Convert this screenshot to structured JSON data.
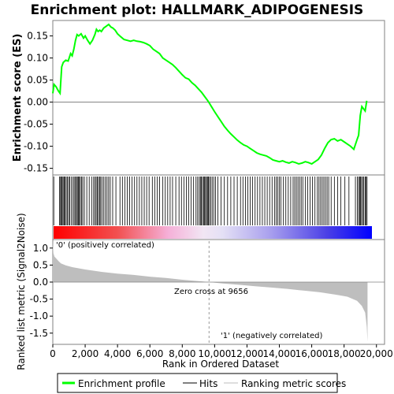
{
  "chart_data": [
    {
      "type": "line",
      "title": "Enrichment plot: HALLMARK_ADIPOGENESIS",
      "ylabel": "Enrichment score (ES)",
      "ylim": [
        -0.165,
        0.185
      ],
      "yticks": [
        "-0.15",
        "-0.10",
        "-0.05",
        "0.00",
        "0.05",
        "0.10",
        "0.15"
      ],
      "ytick_values": [
        -0.15,
        -0.1,
        -0.05,
        0.0,
        0.05,
        0.1,
        0.15
      ],
      "xlim": [
        0,
        20500
      ],
      "series": [
        {
          "name": "Enrichment profile",
          "color": "#00ff00",
          "x": [
            0,
            80,
            200,
            350,
            450,
            550,
            650,
            800,
            950,
            1100,
            1200,
            1300,
            1400,
            1500,
            1600,
            1750,
            1900,
            2000,
            2150,
            2300,
            2450,
            2600,
            2700,
            2800,
            2900,
            3000,
            3150,
            3300,
            3450,
            3600,
            3700,
            3850,
            4000,
            4200,
            4400,
            4600,
            4800,
            5000,
            5200,
            5400,
            5600,
            5800,
            6000,
            6200,
            6400,
            6600,
            6800,
            7000,
            7200,
            7400,
            7600,
            7800,
            8000,
            8200,
            8400,
            8600,
            8800,
            9000,
            9200,
            9400,
            9600,
            9800,
            10000,
            10200,
            10400,
            10600,
            10800,
            11000,
            11200,
            11400,
            11600,
            11800,
            12000,
            12200,
            12400,
            12600,
            12800,
            13000,
            13200,
            13400,
            13600,
            13800,
            14000,
            14200,
            14400,
            14600,
            14800,
            15000,
            15200,
            15400,
            15600,
            15800,
            16000,
            16200,
            16400,
            16600,
            16800,
            17000,
            17200,
            17400,
            17600,
            17800,
            18000,
            18200,
            18400,
            18600,
            18800,
            18900,
            19000,
            19100,
            19200,
            19300,
            19400
          ],
          "y": [
            0.02,
            0.04,
            0.035,
            0.025,
            0.02,
            0.08,
            0.09,
            0.095,
            0.093,
            0.11,
            0.105,
            0.12,
            0.14,
            0.153,
            0.15,
            0.155,
            0.145,
            0.15,
            0.14,
            0.132,
            0.14,
            0.153,
            0.165,
            0.16,
            0.163,
            0.16,
            0.168,
            0.172,
            0.176,
            0.17,
            0.168,
            0.163,
            0.155,
            0.148,
            0.142,
            0.14,
            0.138,
            0.14,
            0.138,
            0.137,
            0.135,
            0.132,
            0.128,
            0.12,
            0.115,
            0.11,
            0.1,
            0.095,
            0.09,
            0.085,
            0.078,
            0.07,
            0.062,
            0.055,
            0.052,
            0.044,
            0.038,
            0.03,
            0.022,
            0.012,
            0.002,
            -0.01,
            -0.022,
            -0.033,
            -0.044,
            -0.055,
            -0.064,
            -0.072,
            -0.079,
            -0.086,
            -0.092,
            -0.097,
            -0.1,
            -0.105,
            -0.11,
            -0.115,
            -0.118,
            -0.12,
            -0.122,
            -0.126,
            -0.131,
            -0.133,
            -0.135,
            -0.133,
            -0.136,
            -0.138,
            -0.135,
            -0.137,
            -0.14,
            -0.138,
            -0.135,
            -0.137,
            -0.14,
            -0.135,
            -0.13,
            -0.12,
            -0.105,
            -0.092,
            -0.085,
            -0.083,
            -0.088,
            -0.085,
            -0.09,
            -0.095,
            -0.1,
            -0.107,
            -0.085,
            -0.075,
            -0.03,
            -0.01,
            -0.015,
            -0.02,
            0.003
          ]
        }
      ]
    },
    {
      "type": "bar",
      "xlabel": "Rank in Ordered Dataset",
      "ylabel": "Ranked list metric (Signal2Noise)",
      "ylim": [
        -1.83,
        1.25
      ],
      "yticks": [
        "-1.5",
        "-1.0",
        "-0.5",
        "0.0",
        "0.5",
        "1.0"
      ],
      "ytick_values": [
        -1.5,
        -1.0,
        -0.5,
        0.0,
        0.5,
        1.0
      ],
      "xlim": [
        0,
        20500
      ],
      "xticks": [
        "0",
        "2,000",
        "4,000",
        "6,000",
        "8,000",
        "10,000",
        "12,000",
        "14,000",
        "16,000",
        "18,000",
        "20,000"
      ],
      "xtick_values": [
        0,
        2000,
        4000,
        6000,
        8000,
        10000,
        12000,
        14000,
        16000,
        18000,
        20000
      ],
      "metric_x": [
        0,
        40,
        100,
        200,
        350,
        500,
        800,
        1200,
        2000,
        3000,
        4000,
        5000,
        6000,
        7000,
        8000,
        9000,
        9656,
        10500,
        11500,
        12500,
        13500,
        14500,
        15500,
        16500,
        17500,
        18200,
        18800,
        19100,
        19300,
        19400,
        19450
      ],
      "metric_y": [
        1.2,
        0.85,
        0.75,
        0.7,
        0.62,
        0.55,
        0.49,
        0.44,
        0.37,
        0.3,
        0.25,
        0.21,
        0.16,
        0.12,
        0.07,
        0.03,
        0.0,
        -0.04,
        -0.08,
        -0.12,
        -0.16,
        -0.2,
        -0.25,
        -0.3,
        -0.37,
        -0.43,
        -0.55,
        -0.7,
        -0.9,
        -1.3,
        -1.75
      ],
      "zero_cross_rank": 9656,
      "annotations": [
        "Zero cross at 9656",
        "'0' (positively correlated)",
        "'1' (negatively correlated)"
      ]
    }
  ],
  "hits": [
    60,
    420,
    480,
    530,
    580,
    640,
    700,
    760,
    830,
    900,
    980,
    1050,
    1150,
    1250,
    1320,
    1400,
    1460,
    1520,
    1580,
    1640,
    1700,
    1780,
    1850,
    1950,
    2100,
    2250,
    2400,
    2520,
    2600,
    2680,
    2750,
    2820,
    2900,
    2960,
    3050,
    3150,
    3250,
    3350,
    3450,
    3550,
    3700,
    3900,
    4150,
    4300,
    4450,
    4600,
    4750,
    4900,
    5050,
    5200,
    5350,
    5500,
    5650,
    5800,
    5950,
    6150,
    6300,
    6450,
    6600,
    6800,
    6950,
    7100,
    7250,
    7400,
    7600,
    7800,
    7950,
    8100,
    8250,
    8400,
    8550,
    8700,
    8850,
    8950,
    9050,
    9120,
    9180,
    9250,
    9320,
    9380,
    9440,
    9500,
    9560,
    9620,
    9680,
    9760,
    9850,
    9950,
    10050,
    10200,
    10400,
    10600,
    10800,
    11000,
    11200,
    11400,
    11600,
    11750,
    11900,
    12050,
    12200,
    12350,
    12500,
    12650,
    12800,
    12950,
    13100,
    13250,
    13400,
    13550,
    13700,
    13800,
    13900,
    14000,
    14100,
    14250,
    14400,
    14550,
    14700,
    14850,
    14950,
    15050,
    15150,
    15250,
    15350,
    15450,
    15600,
    15750,
    15900,
    16050,
    16200,
    16350,
    16450,
    16550,
    16650,
    16750,
    16850,
    16950,
    17050,
    17200,
    17400,
    17600,
    17800,
    18050,
    18300,
    18700,
    18820,
    18900,
    18960,
    19020,
    19080,
    19150,
    19220,
    19300,
    19360,
    19420
  ],
  "colors": {
    "profile": "#00ff00",
    "positive_end": "#ff0000",
    "negative_end": "#0000ff",
    "metric_fill": "#bebebe",
    "axis": "#808080",
    "neg_label": "#1f1fcc",
    "pos_label": "#cc1f1f"
  },
  "labels": {
    "title": "Enrichment plot: HALLMARK_ADIPOGENESIS",
    "es_ylabel": "Enrichment score (ES)",
    "metric_ylabel": "Ranked list metric (Signal2Noise)",
    "xlabel": "Rank in Ordered Dataset",
    "zero_cross": "Zero cross at 9656",
    "pos_corr": "'0' (positively correlated)",
    "neg_corr": "'1' (negatively correlated)"
  },
  "legend": {
    "position": "bottom",
    "items": [
      "Enrichment profile",
      "Hits",
      "Ranking metric scores"
    ]
  }
}
